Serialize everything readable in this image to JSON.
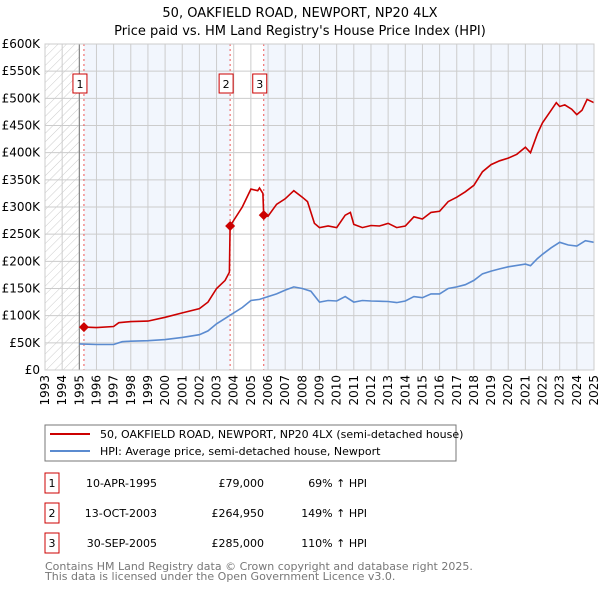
{
  "chart_data": {
    "type": "line",
    "title": "50, OAKFIELD ROAD, NEWPORT, NP20 4LX",
    "subtitle": "Price paid vs. HM Land Registry's House Price Index (HPI)",
    "xlim": [
      1993,
      2025
    ],
    "ylim": [
      0,
      600000
    ],
    "x_ticks": [
      "1993",
      "1994",
      "1995",
      "1996",
      "1997",
      "1998",
      "1999",
      "2000",
      "2001",
      "2002",
      "2003",
      "2004",
      "2005",
      "2006",
      "2007",
      "2008",
      "2009",
      "2010",
      "2011",
      "2012",
      "2013",
      "2014",
      "2015",
      "2016",
      "2017",
      "2018",
      "2019",
      "2020",
      "2021",
      "2022",
      "2023",
      "2024",
      "2025"
    ],
    "y_ticks": [
      {
        "v": 0,
        "l": "£0"
      },
      {
        "v": 50000,
        "l": "£50K"
      },
      {
        "v": 100000,
        "l": "£100K"
      },
      {
        "v": 150000,
        "l": "£150K"
      },
      {
        "v": 200000,
        "l": "£200K"
      },
      {
        "v": 250000,
        "l": "£250K"
      },
      {
        "v": 300000,
        "l": "£300K"
      },
      {
        "v": 350000,
        "l": "£350K"
      },
      {
        "v": 400000,
        "l": "£400K"
      },
      {
        "v": 450000,
        "l": "£450K"
      },
      {
        "v": 500000,
        "l": "£500K"
      },
      {
        "v": 550000,
        "l": "£550K"
      },
      {
        "v": 600000,
        "l": "£600K"
      }
    ],
    "grid": true,
    "series": [
      {
        "name": "50, OAKFIELD ROAD, NEWPORT, NP20 4LX (semi-detached house)",
        "color": "#cc0000",
        "x": [
          1995.27,
          1996,
          1997,
          1997.3,
          1998,
          1999,
          2000,
          2001,
          2002,
          2002.5,
          2003,
          2003.5,
          2003.75,
          2003.79,
          2004.5,
          2005,
          2005.4,
          2005.5,
          2005.7,
          2005.75,
          2006,
          2006.5,
          2007,
          2007.5,
          2008,
          2008.3,
          2008.7,
          2009,
          2009.5,
          2010,
          2010.5,
          2010.8,
          2011,
          2011.5,
          2012,
          2012.5,
          2013,
          2013.5,
          2014,
          2014.5,
          2015,
          2015.5,
          2016,
          2016.5,
          2017,
          2017.5,
          2018,
          2018.5,
          2019,
          2019.5,
          2020,
          2020.5,
          2021,
          2021.3,
          2021.7,
          2022,
          2022.5,
          2022.8,
          2023,
          2023.3,
          2023.7,
          2024,
          2024.3,
          2024.6,
          2025
        ],
        "y": [
          79000,
          78000,
          80000,
          87000,
          89000,
          90000,
          97000,
          105000,
          113000,
          125000,
          150000,
          165000,
          180000,
          264950,
          300000,
          333000,
          330000,
          335000,
          325000,
          285000,
          283000,
          305000,
          315000,
          330000,
          318000,
          310000,
          270000,
          262000,
          265000,
          262000,
          285000,
          290000,
          268000,
          262000,
          266000,
          265000,
          270000,
          262000,
          265000,
          282000,
          278000,
          290000,
          292000,
          310000,
          318000,
          328000,
          340000,
          365000,
          378000,
          385000,
          390000,
          397000,
          410000,
          400000,
          435000,
          455000,
          478000,
          492000,
          485000,
          488000,
          480000,
          470000,
          478000,
          498000,
          492000
        ]
      },
      {
        "name": "HPI: Average price, semi-detached house, Newport",
        "color": "#5b8bd0",
        "x": [
          1995,
          1996,
          1997,
          1997.5,
          1998,
          1999,
          2000,
          2001,
          2002,
          2002.5,
          2003,
          2003.5,
          2004,
          2004.5,
          2005,
          2005.5,
          2006,
          2006.5,
          2007,
          2007.5,
          2008,
          2008.5,
          2009,
          2009.5,
          2010,
          2010.5,
          2011,
          2011.5,
          2012,
          2013,
          2013.5,
          2014,
          2014.5,
          2015,
          2015.5,
          2016,
          2016.5,
          2017,
          2017.5,
          2018,
          2018.5,
          2019,
          2019.5,
          2020,
          2021,
          2021.3,
          2021.7,
          2022,
          2022.5,
          2023,
          2023.5,
          2024,
          2024.5,
          2025
        ],
        "y": [
          48000,
          47000,
          47000,
          52000,
          53000,
          54000,
          56000,
          60000,
          65000,
          72000,
          85000,
          95000,
          105000,
          115000,
          128000,
          130000,
          135000,
          140000,
          147000,
          153000,
          150000,
          145000,
          125000,
          128000,
          127000,
          135000,
          125000,
          128000,
          127000,
          126000,
          124000,
          127000,
          135000,
          133000,
          140000,
          140000,
          150000,
          153000,
          157000,
          165000,
          177000,
          182000,
          186000,
          190000,
          195000,
          192000,
          205000,
          213000,
          225000,
          235000,
          230000,
          228000,
          238000,
          235000
        ]
      }
    ],
    "sales": [
      {
        "n": "1",
        "x": 1995.27,
        "price": 79000,
        "date": "10-APR-1995",
        "price_label": "£79,000",
        "hpi": "69% ↑ HPI"
      },
      {
        "n": "2",
        "x": 2003.79,
        "price": 264950,
        "date": "13-OCT-2003",
        "price_label": "£264,950",
        "hpi": "149% ↑ HPI"
      },
      {
        "n": "3",
        "x": 2005.75,
        "price": 285000,
        "date": "30-SEP-2005",
        "price_label": "£285,000",
        "hpi": "110% ↑ HPI"
      }
    ],
    "legend_placement": "below"
  },
  "footer": {
    "line1": "Contains HM Land Registry data © Crown copyright and database right 2025.",
    "line2": "This data is licensed under the Open Government Licence v3.0."
  }
}
